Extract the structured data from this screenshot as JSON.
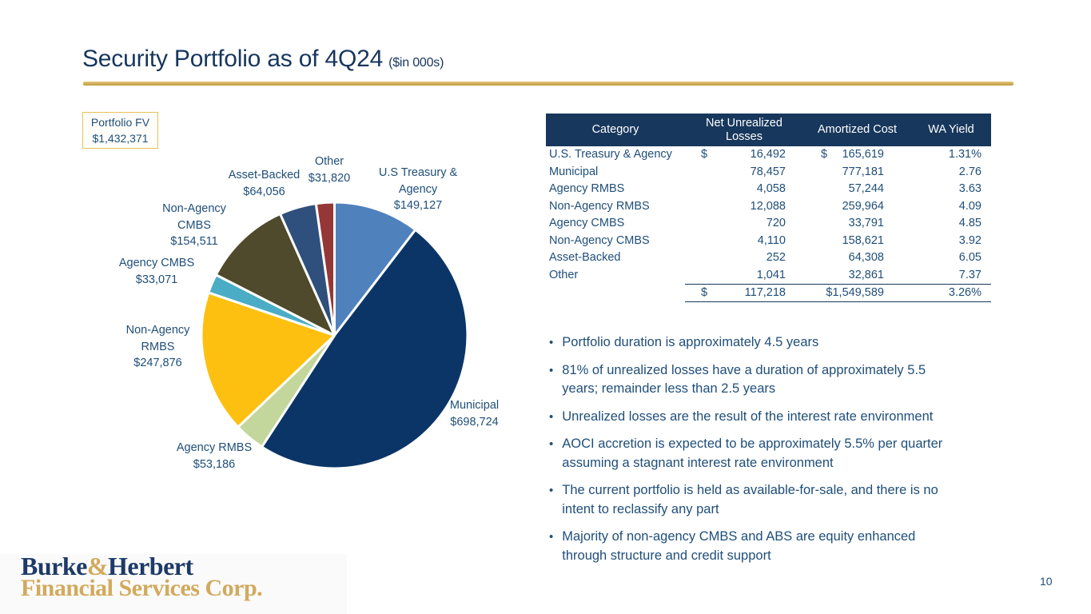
{
  "slide": {
    "title": "Security Portfolio as of 4Q24",
    "title_suffix": "($in 000s)",
    "page_number": "10"
  },
  "colors": {
    "title_navy": "#17365d",
    "body_navy": "#1f4e79",
    "table_header_bg": "#17375c",
    "gold_rule": "#cfae58",
    "fv_border_gold": "#e8c254",
    "logo_navy": "#1d3a68",
    "logo_gold": "#d2aa5e"
  },
  "portfolio_fv": {
    "label": "Portfolio FV",
    "value": "$1,432,371"
  },
  "chart_data": {
    "type": "pie",
    "title": "Security Portfolio as of 4Q24 ($ in 000s)",
    "total_value": 1432371,
    "legend_position": "labels-around-pie",
    "slices": [
      {
        "key": "treasury",
        "category": "U.S Treasury & Agency",
        "value": 149127,
        "display": "$149,127",
        "color": "#4f81bd",
        "label_lines": [
          "U.S Treasury &",
          "Agency",
          "$149,127"
        ]
      },
      {
        "key": "municipal",
        "category": "Municipal",
        "value": 698724,
        "display": "$698,724",
        "color": "#0b3567",
        "label_lines": [
          "Municipal",
          "$698,724"
        ]
      },
      {
        "key": "agency_rmbs",
        "category": "Agency RMBS",
        "value": 53186,
        "display": "$53,186",
        "color": "#c3d69b",
        "label_lines": [
          "Agency RMBS",
          "$53,186"
        ]
      },
      {
        "key": "non_agency_rmbs",
        "category": "Non-Agency RMBS",
        "value": 247876,
        "display": "$247,876",
        "color": "#fdc011",
        "label_lines": [
          "Non-Agency",
          "RMBS",
          "$247,876"
        ]
      },
      {
        "key": "agency_cmbs",
        "category": "Agency CMBS",
        "value": 33071,
        "display": "$33,071",
        "color": "#4bacc6",
        "label_lines": [
          "Agency CMBS",
          "$33,071"
        ]
      },
      {
        "key": "non_agency_cmbs",
        "category": "Non-Agency CMBS",
        "value": 154511,
        "display": "$154,511",
        "color": "#4e4a2b",
        "label_lines": [
          "Non-Agency",
          "CMBS",
          "$154,511"
        ]
      },
      {
        "key": "asset_backed",
        "category": "Asset-Backed",
        "value": 64056,
        "display": "$64,056",
        "color": "#2f4f7c",
        "label_lines": [
          "Asset-Backed",
          "$64,056"
        ]
      },
      {
        "key": "other",
        "category": "Other",
        "value": 31820,
        "display": "$31,820",
        "color": "#943736",
        "label_lines": [
          "Other",
          "$31,820"
        ]
      }
    ]
  },
  "table": {
    "headers": [
      "Category",
      "Net Unrealized Losses",
      "Amortized Cost",
      "WA Yield"
    ],
    "rows": [
      {
        "category": "U.S. Treasury & Agency",
        "nul_sign": "$",
        "nul": "16,492",
        "cost_sign": "$",
        "cost": "165,619",
        "yield": "1.31%"
      },
      {
        "category": "Municipal",
        "nul_sign": "",
        "nul": "78,457",
        "cost_sign": "",
        "cost": "777,181",
        "yield": "2.76"
      },
      {
        "category": "Agency RMBS",
        "nul_sign": "",
        "nul": "4,058",
        "cost_sign": "",
        "cost": "57,244",
        "yield": "3.63"
      },
      {
        "category": "Non-Agency RMBS",
        "nul_sign": "",
        "nul": "12,088",
        "cost_sign": "",
        "cost": "259,964",
        "yield": "4.09"
      },
      {
        "category": "Agency CMBS",
        "nul_sign": "",
        "nul": "720",
        "cost_sign": "",
        "cost": "33,791",
        "yield": "4.85"
      },
      {
        "category": "Non-Agency CMBS",
        "nul_sign": "",
        "nul": "4,110",
        "cost_sign": "",
        "cost": "158,621",
        "yield": "3.92"
      },
      {
        "category": "Asset-Backed",
        "nul_sign": "",
        "nul": "252",
        "cost_sign": "",
        "cost": "64,308",
        "yield": "6.05"
      },
      {
        "category": "Other",
        "nul_sign": "",
        "nul": "1,041",
        "cost_sign": "",
        "cost": "32,861",
        "yield": "7.37"
      }
    ],
    "total": {
      "category": "",
      "nul_sign": "$",
      "nul": "117,218",
      "cost_sign": "",
      "cost": "$1,549,589",
      "yield": "3.26%"
    }
  },
  "bullets": [
    "Portfolio duration is approximately 4.5 years",
    "81% of unrealized losses have a duration of approximately 5.5\nyears; remainder less than 2.5 years",
    "Unrealized losses are the result of the interest rate environment",
    "AOCI accretion is expected to be approximately 5.5% per quarter\nassuming a stagnant interest rate environment",
    "The current portfolio is held as available-for-sale, and there is no\nintent to reclassify any part",
    "Majority of non-agency CMBS and ABS are equity enhanced\nthrough structure and credit support"
  ],
  "logo": {
    "name_part1": "Burke",
    "amp": "&",
    "name_part2": "Herbert",
    "line2": "Financial Services Corp."
  }
}
